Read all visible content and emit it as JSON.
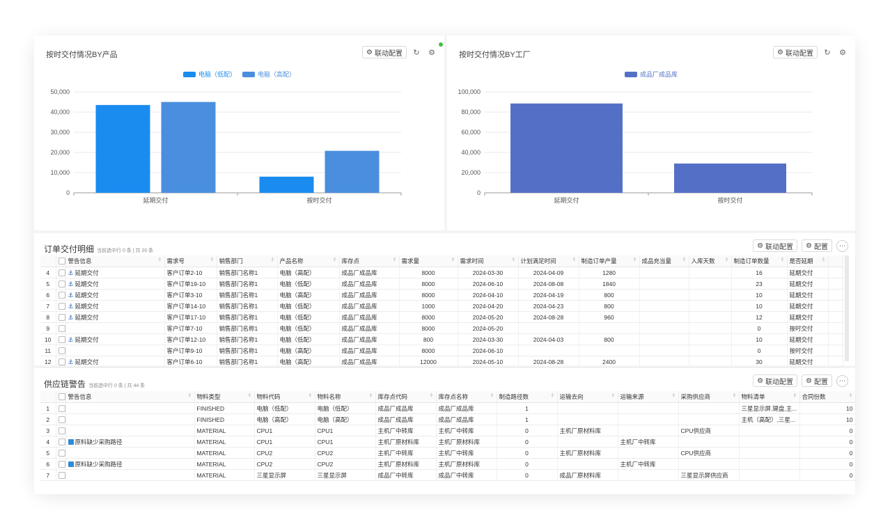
{
  "panel_left": {
    "title": "按时交付情况BY产品",
    "btn_link": "联动配置"
  },
  "panel_right": {
    "title": "按时交付情况BY工厂",
    "btn_link": "联动配置"
  },
  "colors": {
    "series_low": "#1a8cf0",
    "series_high": "#4a8fdf",
    "series_factory": "#5470c6",
    "status_dot": "#3ec13e"
  },
  "chart_data": [
    {
      "type": "bar",
      "title": "按时交付情况BY产品",
      "categories": [
        "延期交付",
        "按时交付"
      ],
      "series": [
        {
          "name": "电脑（低配）",
          "values": [
            43500,
            8000
          ]
        },
        {
          "name": "电脑（高配）",
          "values": [
            45000,
            20800
          ]
        }
      ],
      "ylim": [
        0,
        50000
      ],
      "yticks": [
        "0",
        "10,000",
        "20,000",
        "30,000",
        "40,000",
        "50,000"
      ],
      "grid": true,
      "legend": "top-center"
    },
    {
      "type": "bar",
      "title": "按时交付情况BY工厂",
      "categories": [
        "延期交付",
        "按时交付"
      ],
      "series": [
        {
          "name": "成品厂成品库",
          "values": [
            88500,
            29000
          ]
        }
      ],
      "ylim": [
        0,
        100000
      ],
      "yticks": [
        "0",
        "20,000",
        "40,000",
        "60,000",
        "80,000",
        "100,000"
      ],
      "grid": true,
      "legend": "top-center"
    }
  ],
  "orders": {
    "title": "订单交付明细",
    "subtitle": "当前选中行 0 条 | 共 20 条",
    "btn_link": "联动配置",
    "btn_config": "配置",
    "columns": [
      "警告信息",
      "需求号",
      "销售部门",
      "产品名称",
      "库存点",
      "需求量",
      "需求时间",
      "计划满足时间",
      "制造订单产量",
      "成品充当量",
      "入库天数",
      "制造订单数量",
      "是否延期"
    ],
    "rows": [
      {
        "idx": "4",
        "warn": "延期交付",
        "req": "客户订单2-10",
        "dept": "销售部门名称1",
        "prod": "电脑（高配）",
        "stock": "成品厂成品库",
        "qty": "8000",
        "date": "2024-03-30",
        "plan": "2024-04-09",
        "mfg": "1280",
        "fill": "",
        "days": "",
        "cnt": "16",
        "delay": "延期交付"
      },
      {
        "idx": "5",
        "warn": "延期交付",
        "req": "客户订单19-10",
        "dept": "销售部门名称1",
        "prod": "电脑（低配）",
        "stock": "成品厂成品库",
        "qty": "8000",
        "date": "2024-06-10",
        "plan": "2024-08-08",
        "mfg": "1840",
        "fill": "",
        "days": "",
        "cnt": "23",
        "delay": "延期交付"
      },
      {
        "idx": "6",
        "warn": "延期交付",
        "req": "客户订单3-10",
        "dept": "销售部门名称1",
        "prod": "电脑（高配）",
        "stock": "成品厂成品库",
        "qty": "8000",
        "date": "2024-04-10",
        "plan": "2024-04-19",
        "mfg": "800",
        "fill": "",
        "days": "",
        "cnt": "10",
        "delay": "延期交付"
      },
      {
        "idx": "7",
        "warn": "延期交付",
        "req": "客户订单14-10",
        "dept": "销售部门名称1",
        "prod": "电脑（低配）",
        "stock": "成品厂成品库",
        "qty": "1000",
        "date": "2024-04-20",
        "plan": "2024-04-23",
        "mfg": "800",
        "fill": "",
        "days": "",
        "cnt": "10",
        "delay": "延期交付"
      },
      {
        "idx": "8",
        "warn": "延期交付",
        "req": "客户订单17-10",
        "dept": "销售部门名称1",
        "prod": "电脑（低配）",
        "stock": "成品厂成品库",
        "qty": "8000",
        "date": "2024-05-20",
        "plan": "2024-08-28",
        "mfg": "960",
        "fill": "",
        "days": "",
        "cnt": "12",
        "delay": "延期交付"
      },
      {
        "idx": "9",
        "warn": "",
        "req": "客户订单7-10",
        "dept": "销售部门名称1",
        "prod": "电脑（低配）",
        "stock": "成品厂成品库",
        "qty": "8000",
        "date": "2024-05-20",
        "plan": "",
        "mfg": "",
        "fill": "",
        "days": "",
        "cnt": "0",
        "delay": "按时交付"
      },
      {
        "idx": "10",
        "warn": "延期交付",
        "req": "客户订单12-10",
        "dept": "销售部门名称1",
        "prod": "电脑（低配）",
        "stock": "成品厂成品库",
        "qty": "800",
        "date": "2024-03-30",
        "plan": "2024-04-03",
        "mfg": "800",
        "fill": "",
        "days": "",
        "cnt": "10",
        "delay": "延期交付"
      },
      {
        "idx": "11",
        "warn": "",
        "req": "客户订单9-10",
        "dept": "销售部门名称1",
        "prod": "电脑（高配）",
        "stock": "成品厂成品库",
        "qty": "8000",
        "date": "2024-06-10",
        "plan": "",
        "mfg": "",
        "fill": "",
        "days": "",
        "cnt": "0",
        "delay": "按时交付"
      },
      {
        "idx": "12",
        "warn": "延期交付",
        "req": "客户订单6-10",
        "dept": "销售部门名称1",
        "prod": "电脑（高配）",
        "stock": "成品厂成品库",
        "qty": "12000",
        "date": "2024-05-10",
        "plan": "2024-08-28",
        "mfg": "2400",
        "fill": "",
        "days": "",
        "cnt": "30",
        "delay": "延期交付"
      }
    ]
  },
  "supply": {
    "title": "供应链警告",
    "subtitle": "当前选中行 0 条 | 共 44 条",
    "btn_link": "联动配置",
    "btn_config": "配置",
    "columns": [
      "警告信息",
      "物料类型",
      "物料代码",
      "物料名称",
      "库存点代码",
      "库存点名称",
      "制造路径数",
      "运输去向",
      "运输来源",
      "采购供应商",
      "物料清单",
      "合同份数"
    ],
    "rows": [
      {
        "idx": "1",
        "warn": "",
        "type": "FINISHED",
        "code": "电脑（低配）",
        "name": "电脑（低配）",
        "scode": "成品厂成品库",
        "sname": "成品厂成品库",
        "paths": "1",
        "to": "",
        "from": "",
        "vendor": "",
        "bom": "三星显示屏,键盘,主...",
        "contracts": "10"
      },
      {
        "idx": "2",
        "warn": "",
        "type": "FINISHED",
        "code": "电脑（高配）",
        "name": "电脑（高配）",
        "scode": "成品厂成品库",
        "sname": "成品厂成品库",
        "paths": "1",
        "to": "",
        "from": "",
        "vendor": "",
        "bom": "主机（高配）,三星...",
        "contracts": "10"
      },
      {
        "idx": "3",
        "warn": "",
        "type": "MATERIAL",
        "code": "CPU1",
        "name": "CPU1",
        "scode": "主机厂中转库",
        "sname": "主机厂中转库",
        "paths": "0",
        "to": "主机厂原材料库",
        "from": "",
        "vendor": "CPU供应商",
        "bom": "",
        "contracts": "0"
      },
      {
        "idx": "4",
        "warn": "原料缺少采购路径",
        "type": "MATERIAL",
        "code": "CPU1",
        "name": "CPU1",
        "scode": "主机厂原材料库",
        "sname": "主机厂原材料库",
        "paths": "0",
        "to": "",
        "from": "主机厂中转库",
        "vendor": "",
        "bom": "",
        "contracts": "0"
      },
      {
        "idx": "5",
        "warn": "",
        "type": "MATERIAL",
        "code": "CPU2",
        "name": "CPU2",
        "scode": "主机厂中转库",
        "sname": "主机厂中转库",
        "paths": "0",
        "to": "主机厂原材料库",
        "from": "",
        "vendor": "CPU供应商",
        "bom": "",
        "contracts": "0"
      },
      {
        "idx": "6",
        "warn": "原料缺少采购路径",
        "type": "MATERIAL",
        "code": "CPU2",
        "name": "CPU2",
        "scode": "主机厂原材料库",
        "sname": "主机厂原材料库",
        "paths": "0",
        "to": "",
        "from": "主机厂中转库",
        "vendor": "",
        "bom": "",
        "contracts": "0"
      },
      {
        "idx": "7",
        "warn": "",
        "type": "MATERIAL",
        "code": "三星显示屏",
        "name": "三星显示屏",
        "scode": "成品厂中转库",
        "sname": "成品厂中转库",
        "paths": "0",
        "to": "成品厂原材料库",
        "from": "",
        "vendor": "三星显示屏供应商",
        "bom": "",
        "contracts": "0"
      }
    ]
  }
}
